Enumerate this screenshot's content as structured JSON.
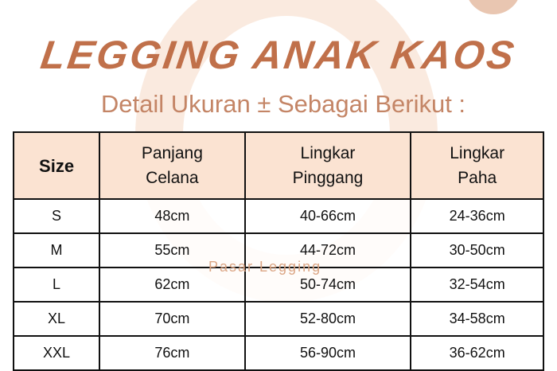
{
  "title": "LEGGING ANAK KAOS",
  "subtitle": "Detail Ukuran ± Sebagai Berikut :",
  "watermark": "Pasar Legging",
  "colors": {
    "title": "#c0704a",
    "subtitle": "#c48566",
    "header_bg": "#fbe3d2"
  },
  "table": {
    "headers": [
      [
        "Size"
      ],
      [
        "Panjang",
        "Celana"
      ],
      [
        "Lingkar",
        "Pinggang"
      ],
      [
        "Lingkar",
        "Paha"
      ]
    ],
    "rows": [
      [
        "S",
        "48cm",
        "40-66cm",
        "24-36cm"
      ],
      [
        "M",
        "55cm",
        "44-72cm",
        "30-50cm"
      ],
      [
        "L",
        "62cm",
        "50-74cm",
        "32-54cm"
      ],
      [
        "XL",
        "70cm",
        "52-80cm",
        "34-58cm"
      ],
      [
        "XXL",
        "76cm",
        "56-90cm",
        "36-62cm"
      ]
    ]
  }
}
